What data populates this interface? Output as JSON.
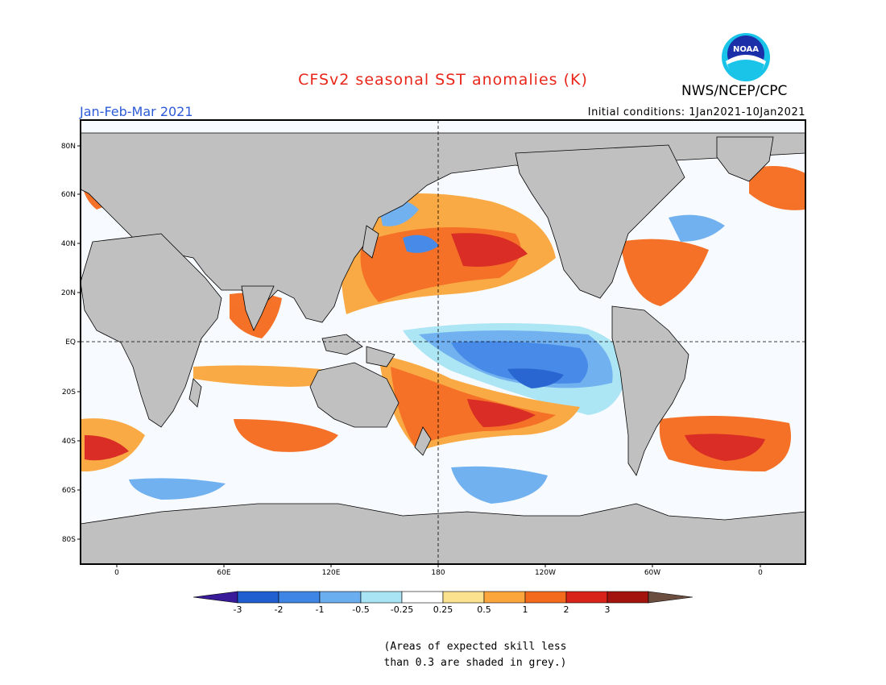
{
  "title": "CFSv2 seasonal SST anomalies (K)",
  "org": "NWS/NCEP/CPC",
  "logo_text": "NOAA",
  "period": "Jan-Feb-Mar 2021",
  "initial_conditions": "Initial conditions: 1Jan2021-10Jan2021",
  "lat_labels": [
    "80N",
    "60N",
    "40N",
    "20N",
    "EQ",
    "20S",
    "40S",
    "60S",
    "80S"
  ],
  "lon_labels": [
    "0",
    "60E",
    "120E",
    "180",
    "120W",
    "60W",
    "0"
  ],
  "legend": {
    "colors": [
      "#3a1b9a",
      "#1f5fcf",
      "#3f85e6",
      "#6aaef0",
      "#a9e4f4",
      "#ffffff",
      "#fbe28e",
      "#fba63c",
      "#f46a1c",
      "#d8231a",
      "#a3140f",
      "#6b4e3f"
    ],
    "ticks": [
      "-3",
      "-2",
      "-1",
      "-0.5",
      "-0.25",
      "0.25",
      "0.5",
      "1",
      "2",
      "3"
    ]
  },
  "skill_note": [
    "(Areas of expected skill less",
    "than 0.3 are shaded in grey.)"
  ],
  "colors": {
    "land": "#c0c0c0",
    "title": "#e8261a",
    "period": "#2d5bd6"
  }
}
